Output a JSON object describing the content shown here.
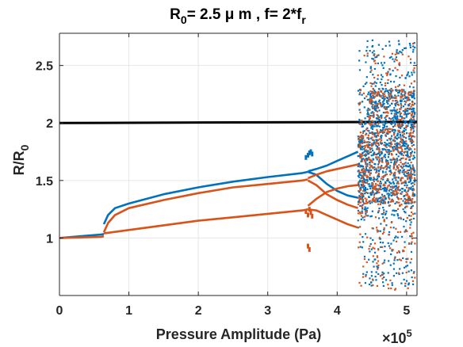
{
  "chart_data": {
    "type": "scatter",
    "title": {
      "prefix": "R",
      "prefix_sub": "0",
      "middle": "= 2.5 μ m , f= 2*f",
      "suffix_sub": "r"
    },
    "xlabel": "Pressure Amplitude (Pa)",
    "ylabel": {
      "main": "R/R",
      "sub": "0"
    },
    "x_multiplier": {
      "base": "×10",
      "exponent": "5"
    },
    "xlim": [
      0,
      5.15
    ],
    "ylim": [
      0.5,
      2.78
    ],
    "xticks": [
      0,
      1,
      2,
      3,
      4,
      5
    ],
    "xtick_labels": [
      "0",
      "1",
      "2",
      "3",
      "4",
      "5"
    ],
    "yticks": [
      1,
      1.5,
      2,
      2.5
    ],
    "ytick_labels": [
      "1",
      "1.5",
      "2",
      "2.5"
    ],
    "grid": true,
    "colors": {
      "blue": "#0072BD",
      "orange": "#D95319",
      "threshold": "#000000"
    },
    "threshold_line": {
      "y_start": 2.0,
      "y_end": 2.01
    },
    "series": [
      {
        "color": "#0072BD",
        "branches": [
          {
            "x": [
              0.0,
              0.3,
              0.6,
              0.64
            ],
            "y": [
              1.0,
              1.015,
              1.03,
              1.035
            ]
          },
          {
            "x": [
              0.64,
              0.7,
              0.8,
              1.0,
              1.5,
              2.0,
              2.5,
              3.0,
              3.5,
              3.58
            ],
            "y": [
              1.12,
              1.2,
              1.26,
              1.3,
              1.38,
              1.44,
              1.49,
              1.53,
              1.565,
              1.575
            ]
          },
          {
            "x": [
              3.58,
              3.7,
              3.85,
              4.0,
              4.15,
              4.3
            ],
            "y": [
              1.58,
              1.6,
              1.63,
              1.67,
              1.71,
              1.75
            ]
          },
          {
            "x": [
              3.58,
              3.7,
              3.85,
              4.0,
              4.15,
              4.3
            ],
            "y": [
              1.575,
              1.55,
              1.47,
              1.41,
              1.37,
              1.35
            ]
          }
        ],
        "island_points": {
          "x": [
            3.55,
            3.58,
            3.6,
            3.62,
            3.64
          ],
          "y": [
            1.7,
            1.72,
            1.74,
            1.75,
            1.73
          ]
        },
        "chaotic_region": {
          "x_range": [
            4.3,
            5.12
          ],
          "y_range": [
            0.58,
            2.72
          ]
        }
      },
      {
        "color": "#D95319",
        "branches": [
          {
            "x": [
              0.0,
              0.3,
              0.6,
              0.64
            ],
            "y": [
              1.0,
              1.005,
              1.01,
              1.015
            ]
          },
          {
            "x": [
              0.64,
              0.7,
              0.8,
              1.0,
              1.5,
              2.0,
              2.5,
              3.0,
              3.5,
              3.58
            ],
            "y": [
              1.05,
              1.13,
              1.2,
              1.26,
              1.33,
              1.39,
              1.44,
              1.47,
              1.5,
              1.51
            ]
          },
          {
            "x": [
              0.64,
              1.0,
              1.5,
              2.0,
              2.5,
              3.0,
              3.5,
              3.58
            ],
            "y": [
              1.04,
              1.07,
              1.11,
              1.15,
              1.18,
              1.21,
              1.24,
              1.25
            ]
          },
          {
            "x": [
              3.58,
              3.7,
              3.85,
              4.0,
              4.15,
              4.3
            ],
            "y": [
              1.52,
              1.55,
              1.58,
              1.6,
              1.62,
              1.64
            ]
          },
          {
            "x": [
              3.58,
              3.7,
              3.85,
              4.0,
              4.15,
              4.3
            ],
            "y": [
              1.28,
              1.34,
              1.4,
              1.43,
              1.45,
              1.46
            ]
          },
          {
            "x": [
              3.58,
              3.7,
              3.85,
              4.0,
              4.15,
              4.3
            ],
            "y": [
              1.25,
              1.24,
              1.2,
              1.16,
              1.12,
              1.09
            ]
          },
          {
            "x": [
              3.58,
              3.7,
              3.85,
              4.0,
              4.15,
              4.3
            ],
            "y": [
              1.5,
              1.46,
              1.38,
              1.33,
              1.29,
              1.26
            ]
          }
        ],
        "island_points": {
          "x": [
            3.55,
            3.58,
            3.6,
            3.62,
            3.64,
            3.58,
            3.6
          ],
          "y": [
            1.23,
            1.2,
            1.25,
            1.22,
            1.19,
            0.93,
            0.9
          ]
        },
        "chaotic_region": {
          "x_range": [
            4.3,
            5.12
          ],
          "y_range": [
            0.55,
            2.62
          ]
        }
      }
    ]
  }
}
